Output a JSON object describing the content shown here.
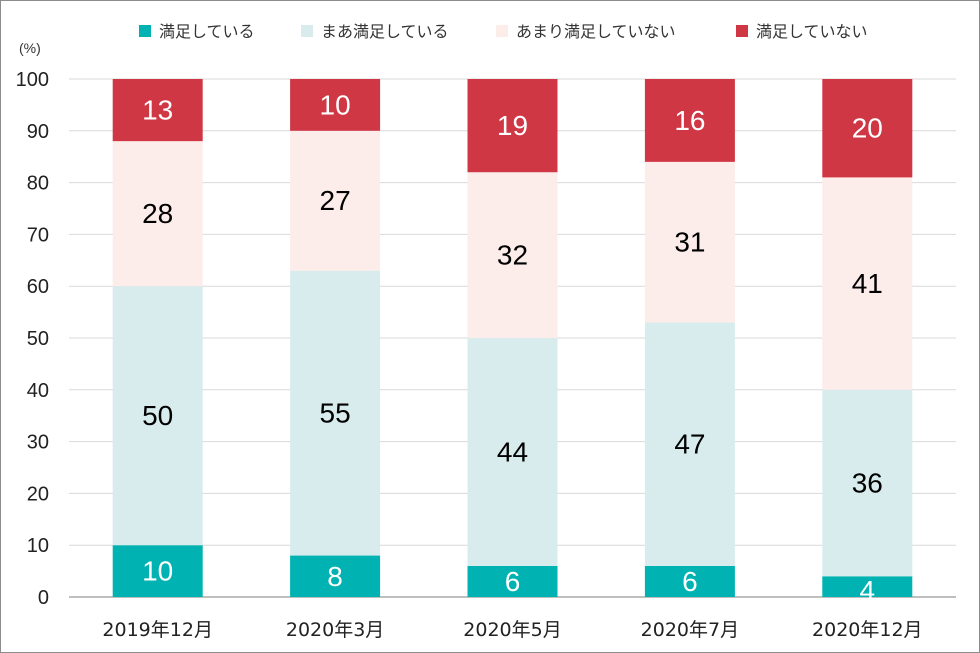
{
  "chart_data": {
    "type": "bar",
    "stacked": true,
    "unit_label": "(%)",
    "categories": [
      "2019年12月",
      "2020年3月",
      "2020年5月",
      "2020年7月",
      "2020年12月"
    ],
    "ylim": [
      0,
      100
    ],
    "yticks": [
      0,
      10,
      20,
      30,
      40,
      50,
      60,
      70,
      80,
      90,
      100
    ],
    "grid": true,
    "legend_position": "top",
    "series": [
      {
        "name": "満足している",
        "color": "#00b2b2",
        "label_color": "#ffffff",
        "values": [
          10,
          8,
          6,
          6,
          4
        ]
      },
      {
        "name": "まあ満足している",
        "color": "#d8ecee",
        "label_color": "#000000",
        "values": [
          50,
          55,
          44,
          47,
          36
        ]
      },
      {
        "name": "あまり満足していない",
        "color": "#fcedeb",
        "label_color": "#000000",
        "values": [
          28,
          27,
          32,
          31,
          41
        ]
      },
      {
        "name": "満足していない",
        "color": "#d03744",
        "label_color": "#ffffff",
        "values": [
          13,
          10,
          19,
          16,
          20
        ]
      }
    ]
  }
}
